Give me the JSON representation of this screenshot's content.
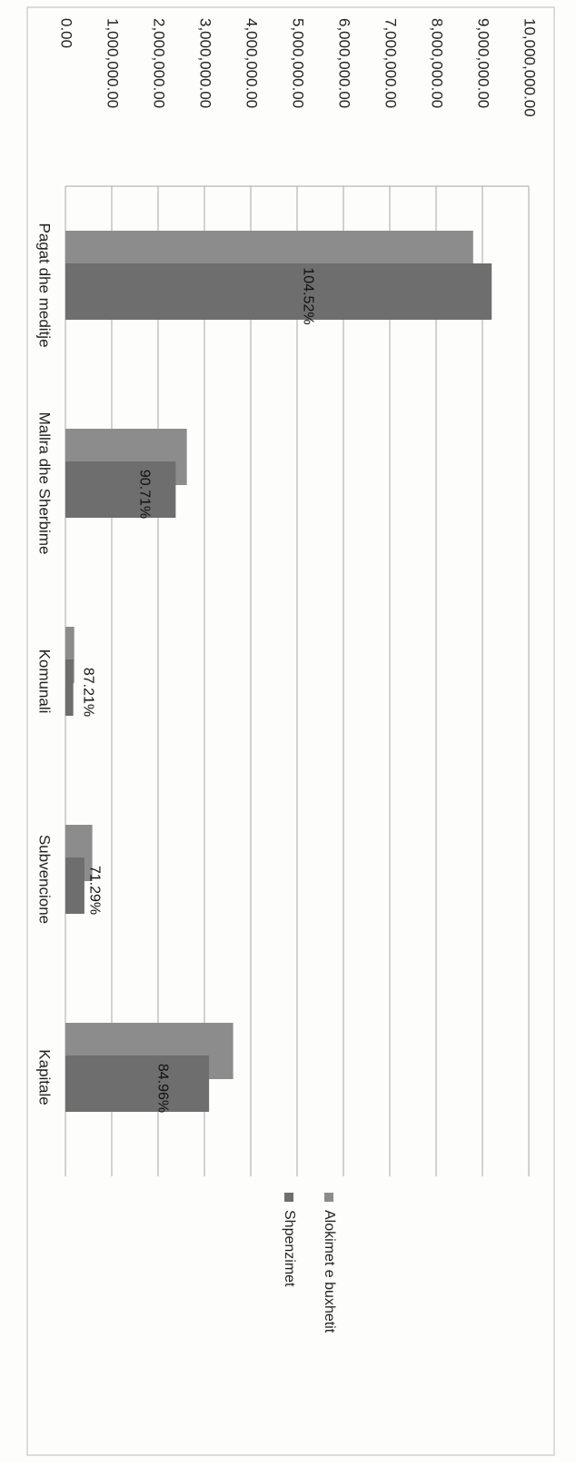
{
  "chart_data": {
    "type": "bar",
    "orientation": "horizontal",
    "title": "",
    "xlabel": "",
    "ylabel": "",
    "categories": [
      "Pagat dhe meditje",
      "Mallra dhe Sherbime",
      "Komunali",
      "Subvencione",
      "Kapitale"
    ],
    "series": [
      {
        "name": "Alokimet e buxhetit",
        "values": [
          8800000,
          2620000,
          190000,
          580000,
          3620000
        ],
        "color": "#8c8c8c"
      },
      {
        "name": "Shpenzimet",
        "values": [
          9200000,
          2380000,
          170000,
          410000,
          3100000
        ],
        "color": "#6e6e6e"
      }
    ],
    "data_labels": [
      "104.52%",
      "90.71%",
      "87.21%",
      "71.29%",
      "84.96%"
    ],
    "value_axis": {
      "range": [
        0,
        10000000
      ],
      "ticks": [
        "0.00",
        "1,000,000.00",
        "2,000,000.00",
        "3,000,000.00",
        "4,000,000.00",
        "5,000,000.00",
        "6,000,000.00",
        "7,000,000.00",
        "8,000,000.00",
        "9,000,000.00",
        "10,000,000.00"
      ]
    },
    "grid": true,
    "legend_position": "right"
  }
}
